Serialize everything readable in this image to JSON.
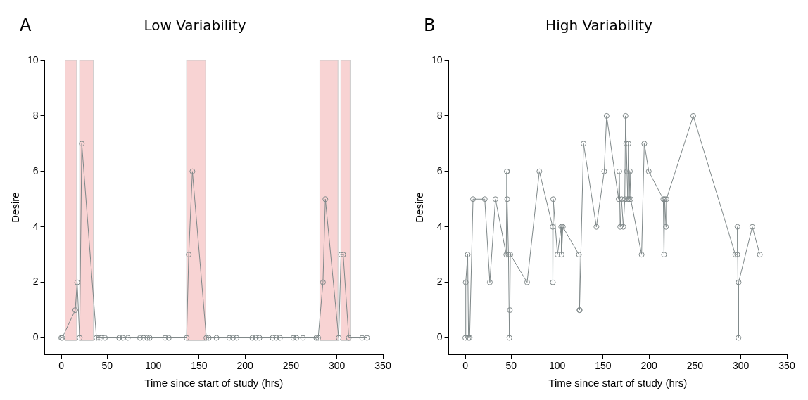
{
  "chart_data": [
    {
      "type": "line",
      "title": "Low Variability",
      "xlabel": "Time since start of study (hrs)",
      "ylabel": "Desire",
      "annotations": [
        "A"
      ],
      "marker": "circle",
      "grid": false,
      "legend": false,
      "xlim": [
        -18,
        350
      ],
      "ylim": [
        -0.6,
        10
      ],
      "xticks": [
        0,
        50,
        100,
        150,
        200,
        250,
        300,
        350
      ],
      "yticks": [
        0,
        2,
        4,
        6,
        8,
        10
      ],
      "bands": [
        {
          "axis": "x",
          "from": 4.2,
          "to": 16.7,
          "color": "#f8d3d3"
        },
        {
          "axis": "x",
          "from": 20,
          "to": 34.9,
          "color": "#f8d3d3"
        },
        {
          "axis": "x",
          "from": 136.4,
          "to": 157.1,
          "color": "#f8d3d3"
        },
        {
          "axis": "x",
          "from": 281.4,
          "to": 301.1,
          "color": "#f8d3d3"
        },
        {
          "axis": "x",
          "from": 304.3,
          "to": 314.3,
          "color": "#f8d3d3"
        }
      ],
      "series": [
        {
          "color": "#7f8889",
          "x": [
            0,
            1,
            15.2,
            17.3,
            20,
            22.3,
            38.3,
            41,
            43.6,
            47.5,
            63,
            67,
            72.5,
            85.7,
            89.6,
            93.6,
            96.2,
            113,
            117,
            136.4,
            138.7,
            142.7,
            157.9,
            160.5,
            168.9,
            182.9,
            186.8,
            190.8,
            207.9,
            211.8,
            215.7,
            230,
            234,
            238,
            252.5,
            255.9,
            263,
            277.5,
            279.6,
            284.8,
            287.4,
            301.9,
            304.5,
            306.8,
            312.9,
            327.4,
            332.7
          ],
          "values": [
            0,
            0,
            1,
            2,
            0,
            7,
            0,
            0,
            0,
            0,
            0,
            0,
            0,
            0,
            0,
            0,
            0,
            0,
            0,
            0,
            3,
            6,
            0,
            0,
            0,
            0,
            0,
            0,
            0,
            0,
            0,
            0,
            0,
            0,
            0,
            0,
            0,
            0,
            0,
            2,
            5,
            0,
            3,
            3,
            0,
            0,
            0
          ]
        }
      ]
    },
    {
      "type": "line",
      "title": "High Variability",
      "xlabel": "Time since start of study (hrs)",
      "ylabel": "Desire",
      "annotations": [
        "B"
      ],
      "marker": "circle",
      "grid": false,
      "legend": false,
      "xlim": [
        -18,
        350
      ],
      "ylim": [
        -0.6,
        10
      ],
      "xticks": [
        0,
        50,
        100,
        150,
        200,
        250,
        300,
        350
      ],
      "yticks": [
        0,
        2,
        4,
        6,
        8,
        10
      ],
      "series": [
        {
          "color": "#7f8889",
          "x": [
            0,
            0.5,
            2.6,
            3.5,
            4.7,
            8.4,
            21.2,
            26.7,
            32.8,
            44.6,
            45.2,
            45.4,
            45.6,
            47,
            48,
            48.5,
            49,
            67.3,
            80.6,
            95.1,
            95.3,
            95.7,
            100.3,
            104.4,
            104.8,
            106.2,
            123.7,
            124.3,
            124.5,
            128.7,
            142.7,
            151.2,
            153.8,
            166.9,
            167.6,
            168.6,
            170,
            172,
            173.6,
            174.4,
            175.2,
            176,
            176.8,
            177.6,
            178.4,
            179.2,
            180,
            191.9,
            194.8,
            199.7,
            215.5,
            216.3,
            217,
            218.4,
            218.9,
            248.1,
            293.9,
            296,
            296.2,
            297.3,
            297.5,
            312.4,
            320.6
          ],
          "values": [
            0,
            2,
            3,
            0,
            0,
            5,
            5,
            2,
            5,
            3,
            6,
            6,
            5,
            3,
            0,
            1,
            3,
            2,
            6,
            4,
            2,
            5,
            3,
            4,
            3,
            4,
            3,
            1,
            1,
            7,
            4,
            6,
            8,
            5,
            6,
            4,
            5,
            4,
            5,
            8,
            7,
            6,
            5,
            7,
            5,
            6,
            5,
            3,
            7,
            6,
            5,
            3,
            5,
            4,
            5,
            8,
            3,
            3,
            4,
            0,
            2,
            4,
            3
          ]
        }
      ]
    }
  ]
}
